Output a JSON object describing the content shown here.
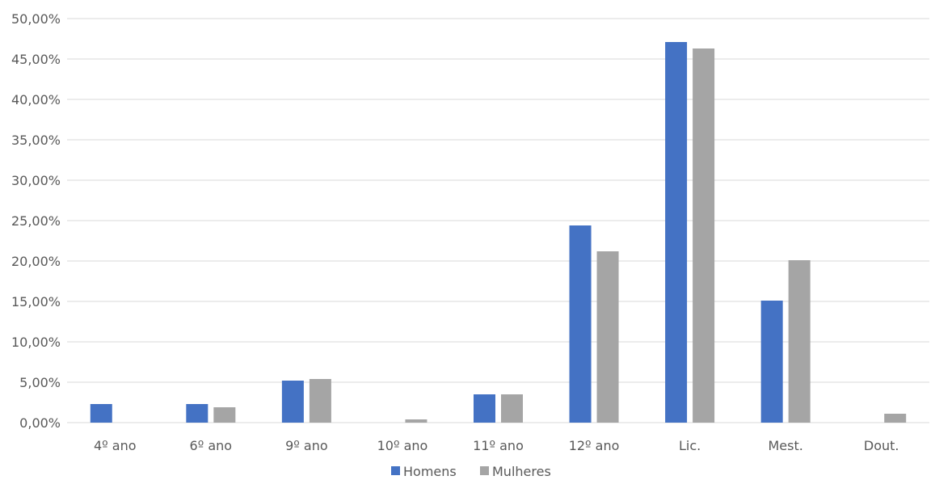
{
  "chart_data": {
    "type": "bar",
    "title": "",
    "xlabel": "",
    "ylabel": "",
    "categories": [
      "4º ano",
      "6º ano",
      "9º ano",
      "10º ano",
      "11º ano",
      "12º ano",
      "Lic.",
      "Mest.",
      "Dout."
    ],
    "series": [
      {
        "name": "Homens",
        "color": "#4472C4",
        "values": [
          2.3,
          2.3,
          5.2,
          0.0,
          3.5,
          24.4,
          47.1,
          15.1,
          0.0
        ]
      },
      {
        "name": "Mulheres",
        "color": "#A5A5A5",
        "values": [
          0.0,
          1.9,
          5.4,
          0.4,
          3.5,
          21.2,
          46.3,
          20.1,
          1.1
        ]
      }
    ],
    "ylim": [
      0,
      50
    ],
    "yticks": [
      "0,00%",
      "5,00%",
      "10,00%",
      "15,00%",
      "20,00%",
      "25,00%",
      "30,00%",
      "35,00%",
      "40,00%",
      "45,00%",
      "50,00%"
    ],
    "grid": true,
    "legend_position": "bottom"
  }
}
